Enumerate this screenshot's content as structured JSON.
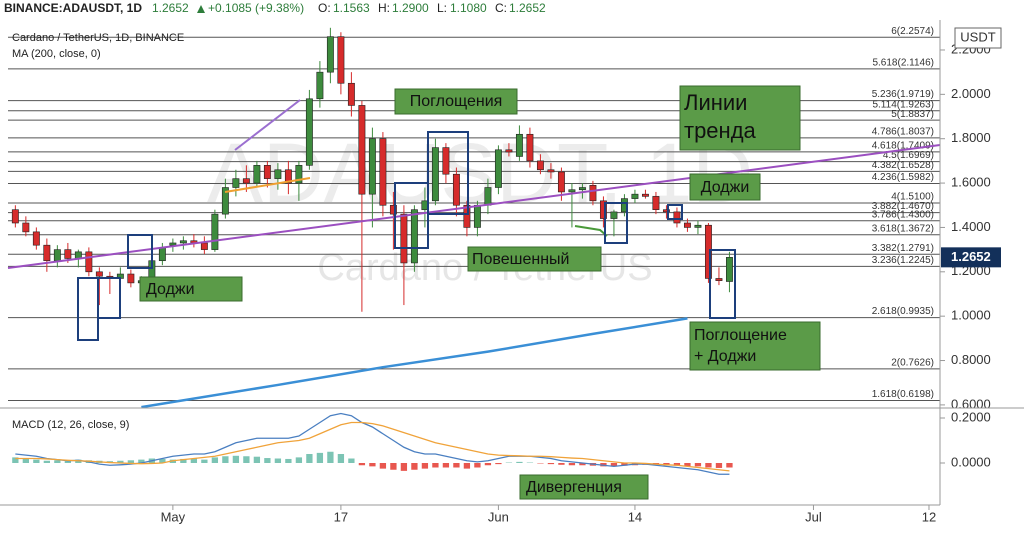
{
  "header": {
    "symbol": "BINANCE:ADAUSDT, 1D",
    "price": "1.2652",
    "change": "+0.1085 (+9.38%)",
    "ohlc": [
      {
        "label": "O:",
        "value": "1.1563"
      },
      {
        "label": "H:",
        "value": "1.2900"
      },
      {
        "label": "L:",
        "value": "1.1080"
      },
      {
        "label": "C:",
        "value": "1.2652"
      }
    ]
  },
  "annotations": {
    "engulfings": "Поглощения",
    "trendlines": [
      "Линии",
      "тренда"
    ],
    "doji_right": "Доджи",
    "doji_left": "Доджи",
    "hanging_man": "Повешенный",
    "engulfing_doji": [
      "Поглощение",
      "+ Доджи"
    ],
    "divergence": "Дивергенция"
  },
  "chart_data": [
    {
      "type": "candlestick",
      "legend": [
        "Cardano / TetherUS, 1D, BINANCE",
        "MA (200, close, 0)"
      ],
      "watermark": [
        "ADAUSDT, 1D",
        "Cardano / TetherUS"
      ],
      "axis_unit": "USDT",
      "up_color": "#3d8b3d",
      "down_color": "#d62b2b",
      "x": [
        -15,
        -14,
        -13,
        -12,
        -11,
        -10,
        -9,
        -8,
        -7,
        -6,
        -5,
        -4,
        -3,
        -2,
        -1,
        0,
        1,
        2,
        3,
        4,
        5,
        6,
        7,
        8,
        9,
        10,
        11,
        12,
        13,
        14,
        15,
        16,
        17,
        18,
        19,
        20,
        21,
        22,
        23,
        24,
        25,
        26,
        27,
        28,
        29,
        30,
        31,
        32,
        33,
        34,
        35,
        36,
        37,
        38,
        39,
        40,
        41,
        42,
        43,
        44,
        45,
        46,
        47,
        48,
        49,
        50,
        51,
        52,
        53
      ],
      "open": [
        1.48,
        1.42,
        1.38,
        1.32,
        1.25,
        1.3,
        1.26,
        1.29,
        1.2,
        1.18,
        1.17,
        1.19,
        1.15,
        1.16,
        1.25,
        1.32,
        1.33,
        1.34,
        1.33,
        1.3,
        1.46,
        1.58,
        1.62,
        1.6,
        1.68,
        1.62,
        1.66,
        1.6,
        1.68,
        1.98,
        2.1,
        2.26,
        2.05,
        1.95,
        1.55,
        1.8,
        1.5,
        1.46,
        1.24,
        1.48,
        1.52,
        1.76,
        1.64,
        1.5,
        1.4,
        1.5,
        1.58,
        1.75,
        1.72,
        1.82,
        1.7,
        1.66,
        1.65,
        1.56,
        1.57,
        1.59,
        1.52,
        1.44,
        1.47,
        1.53,
        1.55,
        1.54,
        1.48,
        1.47,
        1.42,
        1.4,
        1.41,
        1.17,
        1.1563
      ],
      "high": [
        1.5,
        1.45,
        1.4,
        1.35,
        1.32,
        1.33,
        1.3,
        1.31,
        1.22,
        1.2,
        1.22,
        1.21,
        1.18,
        1.26,
        1.33,
        1.35,
        1.36,
        1.37,
        1.36,
        1.48,
        1.62,
        1.66,
        1.68,
        1.7,
        1.7,
        1.69,
        1.7,
        1.7,
        2.02,
        2.15,
        2.3,
        2.28,
        2.1,
        1.97,
        1.85,
        1.83,
        1.56,
        1.5,
        1.5,
        1.58,
        1.8,
        1.78,
        1.67,
        1.52,
        1.52,
        1.62,
        1.77,
        1.78,
        1.86,
        1.85,
        1.73,
        1.69,
        1.67,
        1.6,
        1.6,
        1.61,
        1.54,
        1.48,
        1.55,
        1.57,
        1.57,
        1.56,
        1.5,
        1.49,
        1.44,
        1.43,
        1.42,
        1.22,
        1.29
      ],
      "low": [
        1.4,
        1.36,
        1.3,
        1.2,
        1.22,
        1.24,
        1.22,
        1.18,
        1.05,
        1.1,
        1.14,
        1.13,
        1.1,
        1.14,
        1.23,
        1.29,
        1.3,
        1.31,
        1.28,
        1.29,
        1.44,
        1.54,
        1.56,
        1.58,
        1.58,
        1.57,
        1.55,
        1.52,
        1.66,
        1.94,
        2.05,
        2.0,
        1.9,
        1.02,
        1.4,
        1.45,
        1.3,
        1.05,
        1.2,
        1.4,
        1.5,
        1.6,
        1.45,
        1.36,
        1.36,
        1.46,
        1.55,
        1.72,
        1.7,
        1.67,
        1.64,
        1.62,
        1.52,
        1.4,
        1.53,
        1.5,
        1.4,
        1.36,
        1.45,
        1.51,
        1.53,
        1.46,
        1.44,
        1.4,
        1.38,
        1.37,
        1.15,
        1.14,
        1.108
      ],
      "close": [
        1.42,
        1.38,
        1.32,
        1.25,
        1.3,
        1.26,
        1.29,
        1.2,
        1.18,
        1.17,
        1.19,
        1.15,
        1.16,
        1.25,
        1.31,
        1.33,
        1.34,
        1.33,
        1.3,
        1.46,
        1.58,
        1.62,
        1.6,
        1.68,
        1.62,
        1.66,
        1.6,
        1.68,
        1.98,
        2.1,
        2.26,
        2.05,
        1.95,
        1.55,
        1.8,
        1.5,
        1.46,
        1.24,
        1.48,
        1.52,
        1.76,
        1.64,
        1.5,
        1.4,
        1.5,
        1.58,
        1.75,
        1.74,
        1.82,
        1.7,
        1.66,
        1.65,
        1.56,
        1.57,
        1.58,
        1.52,
        1.44,
        1.47,
        1.53,
        1.55,
        1.54,
        1.48,
        1.47,
        1.42,
        1.4,
        1.41,
        1.17,
        1.16,
        1.2652
      ],
      "ma": {
        "color": "#3a8fd6",
        "x": [
          -3,
          10,
          20,
          30,
          40,
          49
        ],
        "values": [
          0.59,
          0.69,
          0.77,
          0.84,
          0.92,
          0.99
        ]
      },
      "fib_color": "#555555",
      "fib_levels": [
        {
          "value": 2.2574,
          "label": "6(2.2574)"
        },
        {
          "value": 2.1146,
          "label": "5.618(2.1146)"
        },
        {
          "value": 1.9719,
          "label": "5.236(1.9719)"
        },
        {
          "value": 1.9263,
          "label": "5.114(1.9263)"
        },
        {
          "value": 1.8837,
          "label": "5(1.8837)"
        },
        {
          "value": 1.8037,
          "label": "4.786(1.8037)"
        },
        {
          "value": 1.7409,
          "label": "4.618(1.7409)"
        },
        {
          "value": 1.6969,
          "label": "4.5(1.6969)"
        },
        {
          "value": 1.6528,
          "label": "4.382(1.6528)"
        },
        {
          "value": 1.5982,
          "label": "4.236(1.5982)"
        },
        {
          "value": 1.51,
          "label": "4(1.5100)"
        },
        {
          "value": 1.467,
          "label": "3.882(1.4670)"
        },
        {
          "value": 1.43,
          "label": "3.786(1.4300)"
        },
        {
          "value": 1.3672,
          "label": "3.618(1.3672)"
        },
        {
          "value": 1.2791,
          "label": "3.382(1.2791)"
        },
        {
          "value": 1.2245,
          "label": "3.236(1.2245)"
        },
        {
          "value": 0.9935,
          "label": "2.618(0.9935)"
        },
        {
          "value": 0.7626,
          "label": "2(0.7626)"
        },
        {
          "value": 0.6198,
          "label": "1.618(0.6198)"
        }
      ],
      "last_price": {
        "value": 1.2652,
        "label": "1.2652",
        "color": "#13305a"
      },
      "xlim": [
        -15.7,
        73.05
      ],
      "xticks": [
        {
          "value": 0,
          "label": "May"
        },
        {
          "value": 16,
          "label": "17"
        },
        {
          "value": 31,
          "label": "Jun"
        },
        {
          "value": 44,
          "label": "14"
        },
        {
          "value": 61,
          "label": "Jul"
        },
        {
          "value": 72,
          "label": "12"
        }
      ],
      "ylim": [
        0.586,
        2.3036
      ],
      "yticks": [
        {
          "value": 2.2,
          "label": "2.2000"
        },
        {
          "value": 2.0,
          "label": "2.0000"
        },
        {
          "value": 1.8,
          "label": "1.8000"
        },
        {
          "value": 1.6,
          "label": "1.6000"
        },
        {
          "value": 1.4,
          "label": "1.4000"
        },
        {
          "value": 1.2,
          "label": "1.2000"
        },
        {
          "value": 1.0,
          "label": "1.0000"
        },
        {
          "value": 0.8,
          "label": "0.8000"
        },
        {
          "value": 0.6,
          "label": "0.6000"
        }
      ]
    },
    {
      "type": "macd",
      "title": "MACD (12, 26, close, 9)",
      "x": [
        -15,
        -14,
        -13,
        -12,
        -11,
        -10,
        -9,
        -8,
        -7,
        -6,
        -5,
        -4,
        -3,
        -2,
        -1,
        0,
        1,
        2,
        3,
        4,
        5,
        6,
        7,
        8,
        9,
        10,
        11,
        12,
        13,
        14,
        15,
        16,
        17,
        18,
        19,
        20,
        21,
        22,
        23,
        24,
        25,
        26,
        27,
        28,
        29,
        30,
        31,
        32,
        33,
        34,
        35,
        36,
        37,
        38,
        39,
        40,
        41,
        42,
        43,
        44,
        45,
        46,
        47,
        48,
        49,
        50,
        51,
        52,
        53
      ],
      "histogram": {
        "up_color": "#7cc4b4",
        "down_color": "#e8574f",
        "values": [
          0.025,
          0.02,
          0.015,
          0.01,
          0.012,
          0.01,
          0.015,
          0.012,
          0.01,
          0.008,
          0.01,
          0.012,
          0.015,
          0.02,
          0.018,
          0.015,
          0.018,
          0.02,
          0.015,
          0.025,
          0.03,
          0.032,
          0.03,
          0.028,
          0.022,
          0.02,
          0.018,
          0.025,
          0.04,
          0.045,
          0.05,
          0.04,
          0.02,
          -0.01,
          -0.015,
          -0.025,
          -0.03,
          -0.035,
          -0.03,
          -0.025,
          -0.02,
          -0.02,
          -0.02,
          -0.025,
          -0.02,
          -0.01,
          -0.005,
          0.002,
          0.005,
          0.002,
          -0.002,
          -0.005,
          -0.008,
          -0.01,
          -0.01,
          -0.012,
          -0.015,
          -0.015,
          -0.012,
          -0.01,
          -0.008,
          -0.008,
          -0.01,
          -0.012,
          -0.015,
          -0.015,
          -0.02,
          -0.022,
          -0.02
        ]
      },
      "series": [
        {
          "color": "#4a7fc1",
          "values": [
            0.04,
            0.035,
            0.03,
            0.02,
            0.015,
            0.01,
            0.012,
            0.005,
            -0.005,
            -0.01,
            -0.008,
            -0.005,
            0.0,
            0.01,
            0.02,
            0.03,
            0.035,
            0.04,
            0.04,
            0.05,
            0.07,
            0.09,
            0.1,
            0.11,
            0.11,
            0.11,
            0.11,
            0.12,
            0.15,
            0.18,
            0.21,
            0.22,
            0.21,
            0.18,
            0.16,
            0.13,
            0.1,
            0.07,
            0.05,
            0.04,
            0.04,
            0.03,
            0.02,
            0.01,
            0.005,
            0.01,
            0.02,
            0.03,
            0.03,
            0.03,
            0.025,
            0.02,
            0.01,
            0.005,
            0.0,
            -0.005,
            -0.01,
            -0.015,
            -0.01,
            -0.005,
            -0.005,
            -0.01,
            -0.015,
            -0.02,
            -0.025,
            -0.03,
            -0.04,
            -0.05,
            -0.05
          ]
        },
        {
          "color": "#f0a33a",
          "values": [
            0.02,
            0.02,
            0.02,
            0.018,
            0.015,
            0.012,
            0.01,
            0.008,
            0.005,
            0.002,
            0.0,
            -0.002,
            -0.003,
            -0.002,
            0.0,
            0.01,
            0.015,
            0.02,
            0.025,
            0.03,
            0.04,
            0.05,
            0.06,
            0.07,
            0.08,
            0.09,
            0.095,
            0.1,
            0.11,
            0.13,
            0.15,
            0.17,
            0.18,
            0.18,
            0.175,
            0.165,
            0.15,
            0.135,
            0.12,
            0.105,
            0.09,
            0.08,
            0.07,
            0.06,
            0.05,
            0.04,
            0.035,
            0.033,
            0.032,
            0.03,
            0.03,
            0.028,
            0.025,
            0.022,
            0.02,
            0.015,
            0.01,
            0.005,
            0.0,
            0.0,
            -0.002,
            -0.005,
            -0.008,
            -0.01,
            -0.015,
            -0.02,
            -0.025,
            -0.03,
            -0.035
          ]
        }
      ],
      "ylim": [
        -0.1867,
        0.2356
      ],
      "yticks": [
        {
          "value": 0.2,
          "label": "0.2000"
        },
        {
          "value": 0,
          "label": "0.0000"
        }
      ]
    }
  ]
}
